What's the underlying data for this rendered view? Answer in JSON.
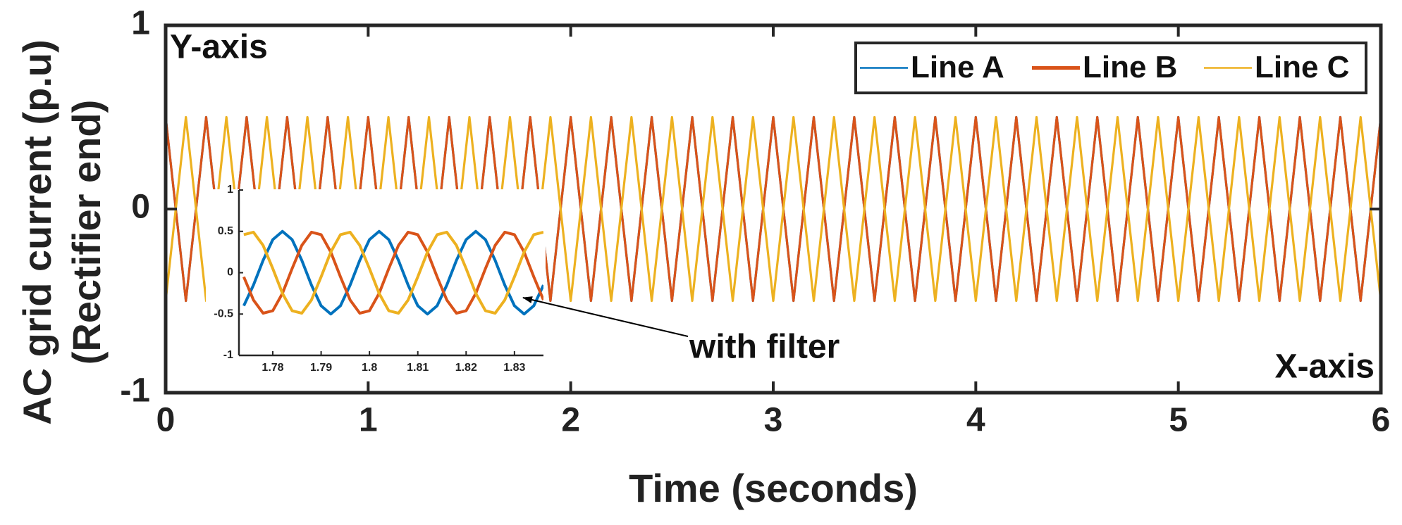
{
  "chart_data": [
    {
      "type": "line",
      "xlabel": "Time (seconds)",
      "ylabel": [
        "AC grid current (p.u)",
        "(Rectifier end)"
      ],
      "annotations": [
        "Y-axis",
        "X-axis",
        "with filter"
      ],
      "xlim": [
        0,
        6
      ],
      "xticks": [
        0,
        1,
        2,
        3,
        4,
        5,
        6
      ],
      "ylim": [
        -1,
        1
      ],
      "yticks": [
        -1,
        0,
        1
      ],
      "legend": "upper right",
      "x": [
        0,
        0.1,
        0.2,
        0.3,
        0.4,
        0.5,
        0.6,
        0.7,
        0.8,
        0.9,
        1,
        1.1,
        1.2,
        1.3,
        1.4,
        1.5,
        1.6,
        1.7,
        1.8,
        1.9,
        2,
        2.1,
        2.2,
        2.3,
        2.4,
        2.5,
        2.6,
        2.7,
        2.8,
        2.9,
        3,
        3.1,
        3.2,
        3.3,
        3.4,
        3.5,
        3.6,
        3.7,
        3.8,
        3.9,
        4,
        4.1,
        4.2,
        4.3,
        4.4,
        4.5,
        4.6,
        4.7,
        4.8,
        4.9,
        5,
        5.1,
        5.2,
        5.3,
        5.4,
        5.5,
        5.6,
        5.7,
        5.8,
        5.9,
        6
      ],
      "series": [
        {
          "name": "Line A",
          "color": "#0072BD",
          "values": [
            0.5,
            -0.5,
            0.5,
            -0.5,
            0.5,
            -0.5,
            0.5,
            -0.5,
            0.5,
            -0.5,
            0.5,
            -0.5,
            0.5,
            -0.5,
            0.5,
            -0.5,
            0.5,
            -0.5,
            0.5,
            -0.5,
            0.5,
            -0.5,
            0.5,
            -0.5,
            0.5,
            -0.5,
            0.5,
            -0.5,
            0.5,
            -0.5,
            0.5,
            -0.5,
            0.5,
            -0.5,
            0.5,
            -0.5,
            0.5,
            -0.5,
            0.5,
            -0.5,
            0.5,
            -0.5,
            0.5,
            -0.5,
            0.5,
            -0.5,
            0.5,
            -0.5,
            0.5,
            -0.5,
            0.5,
            -0.5,
            0.5,
            -0.5,
            0.5,
            -0.5,
            0.5,
            -0.5,
            0.5,
            -0.5,
            0.5
          ]
        },
        {
          "name": "Line B",
          "color": "#D95319",
          "values": [
            0.5,
            -0.5,
            0.5,
            -0.5,
            0.5,
            -0.5,
            0.5,
            -0.5,
            0.5,
            -0.5,
            0.5,
            -0.5,
            0.5,
            -0.5,
            0.5,
            -0.5,
            0.5,
            -0.5,
            0.5,
            -0.5,
            0.5,
            -0.5,
            0.5,
            -0.5,
            0.5,
            -0.5,
            0.5,
            -0.5,
            0.5,
            -0.5,
            0.5,
            -0.5,
            0.5,
            -0.5,
            0.5,
            -0.5,
            0.5,
            -0.5,
            0.5,
            -0.5,
            0.5,
            -0.5,
            0.5,
            -0.5,
            0.5,
            -0.5,
            0.5,
            -0.5,
            0.5,
            -0.5,
            0.5,
            -0.5,
            0.5,
            -0.5,
            0.5,
            -0.5,
            0.5,
            -0.5,
            0.5,
            -0.5,
            0.5
          ]
        },
        {
          "name": "Line C",
          "color": "#EDB120",
          "values": [
            -0.5,
            0.5,
            -0.5,
            0.5,
            -0.5,
            0.5,
            -0.5,
            0.5,
            -0.5,
            0.5,
            -0.5,
            0.5,
            -0.5,
            0.5,
            -0.5,
            0.5,
            -0.5,
            0.5,
            -0.5,
            0.5,
            -0.5,
            0.5,
            -0.5,
            0.5,
            -0.5,
            0.5,
            -0.5,
            0.5,
            -0.5,
            0.5,
            -0.5,
            0.5,
            -0.5,
            0.5,
            -0.5,
            0.5,
            -0.5,
            0.5,
            -0.5,
            0.5,
            -0.5,
            0.5,
            -0.5,
            0.5,
            -0.5,
            0.5,
            -0.5,
            0.5,
            -0.5,
            0.5,
            -0.5,
            0.5,
            -0.5,
            0.5,
            -0.5,
            0.5,
            -0.5,
            0.5,
            -0.5,
            0.5,
            -0.5
          ]
        }
      ]
    },
    {
      "type": "line",
      "xlim": [
        1.773,
        1.836
      ],
      "xticks": [
        1.78,
        1.79,
        1.8,
        1.81,
        1.82,
        1.83
      ],
      "ylim": [
        -1,
        1
      ],
      "yticks": [
        -1,
        -0.5,
        0,
        0.5,
        1
      ],
      "x": [
        1.774,
        1.776,
        1.778,
        1.78,
        1.782,
        1.784,
        1.786,
        1.788,
        1.79,
        1.792,
        1.794,
        1.796,
        1.798,
        1.8,
        1.802,
        1.804,
        1.806,
        1.808,
        1.81,
        1.812,
        1.814,
        1.816,
        1.818,
        1.82,
        1.822,
        1.824,
        1.826,
        1.828,
        1.83,
        1.832,
        1.834,
        1.836
      ],
      "series": [
        {
          "color": "#0072BD",
          "values": [
            -0.4,
            -0.15,
            0.15,
            0.4,
            0.5,
            0.4,
            0.15,
            -0.15,
            -0.4,
            -0.5,
            -0.4,
            -0.15,
            0.15,
            0.4,
            0.5,
            0.4,
            0.15,
            -0.15,
            -0.4,
            -0.5,
            -0.4,
            -0.15,
            0.15,
            0.4,
            0.5,
            0.4,
            0.15,
            -0.15,
            -0.4,
            -0.5,
            -0.4,
            -0.15
          ]
        },
        {
          "color": "#D95319",
          "values": [
            -0.05,
            -0.33,
            -0.49,
            -0.46,
            -0.25,
            0.05,
            0.33,
            0.49,
            0.46,
            0.25,
            -0.05,
            -0.33,
            -0.49,
            -0.46,
            -0.25,
            0.05,
            0.33,
            0.49,
            0.46,
            0.25,
            -0.05,
            -0.33,
            -0.49,
            -0.46,
            -0.25,
            0.05,
            0.33,
            0.49,
            0.46,
            0.25,
            -0.05,
            -0.33
          ]
        },
        {
          "color": "#EDB120",
          "values": [
            0.46,
            0.49,
            0.33,
            0.05,
            -0.25,
            -0.46,
            -0.49,
            -0.33,
            -0.05,
            0.25,
            0.46,
            0.49,
            0.33,
            0.05,
            -0.25,
            -0.46,
            -0.49,
            -0.33,
            -0.05,
            0.25,
            0.46,
            0.49,
            0.33,
            0.05,
            -0.25,
            -0.46,
            -0.49,
            -0.33,
            -0.05,
            0.25,
            0.46,
            0.49
          ]
        }
      ]
    }
  ]
}
